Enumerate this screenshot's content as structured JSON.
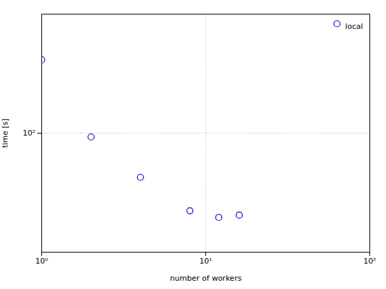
{
  "chart_data": {
    "type": "scatter",
    "x_label": "number of workers",
    "y_label": "time [s]",
    "series": [
      {
        "name": "local",
        "color": "#0000cc",
        "marker": "o",
        "x": [
          1,
          2,
          4,
          8,
          12,
          16
        ],
        "values": [
          270,
          95,
          55,
          35,
          32,
          33
        ]
      }
    ],
    "log": true,
    "xlim": [
      1,
      100
    ],
    "ylim": [
      20,
      500
    ],
    "xticks": [
      {
        "value": 1,
        "label": "10⁰"
      },
      {
        "value": 10,
        "label": "10¹"
      },
      {
        "value": 100,
        "label": "10²"
      }
    ],
    "yticks": [
      {
        "value": 100,
        "label": "10²"
      }
    ],
    "grid": true,
    "legend": "upper right"
  }
}
